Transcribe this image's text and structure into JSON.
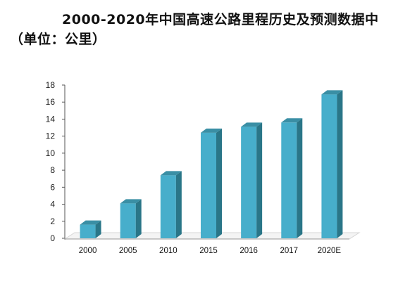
{
  "chart_data": {
    "type": "bar",
    "title": "2000-2020年中国高速公路里程历史及预测数据中（单位：公里）",
    "xlabel": "",
    "ylabel": "",
    "categories": [
      "2000",
      "2005",
      "2010",
      "2015",
      "2016",
      "2017",
      "2020E"
    ],
    "values": [
      1.6,
      4.1,
      7.4,
      12.4,
      13.1,
      13.6,
      16.9
    ],
    "ylim": [
      0,
      18
    ],
    "yticks": [
      0,
      2,
      4,
      6,
      8,
      10,
      12,
      14,
      16,
      18
    ],
    "grid": false,
    "legend": "none",
    "style": "3d",
    "colors": {
      "bar_front": "#47aecb",
      "bar_side": "#2a7688",
      "bar_top": "#3a8fa5",
      "floor": "#d7d7d7"
    }
  }
}
